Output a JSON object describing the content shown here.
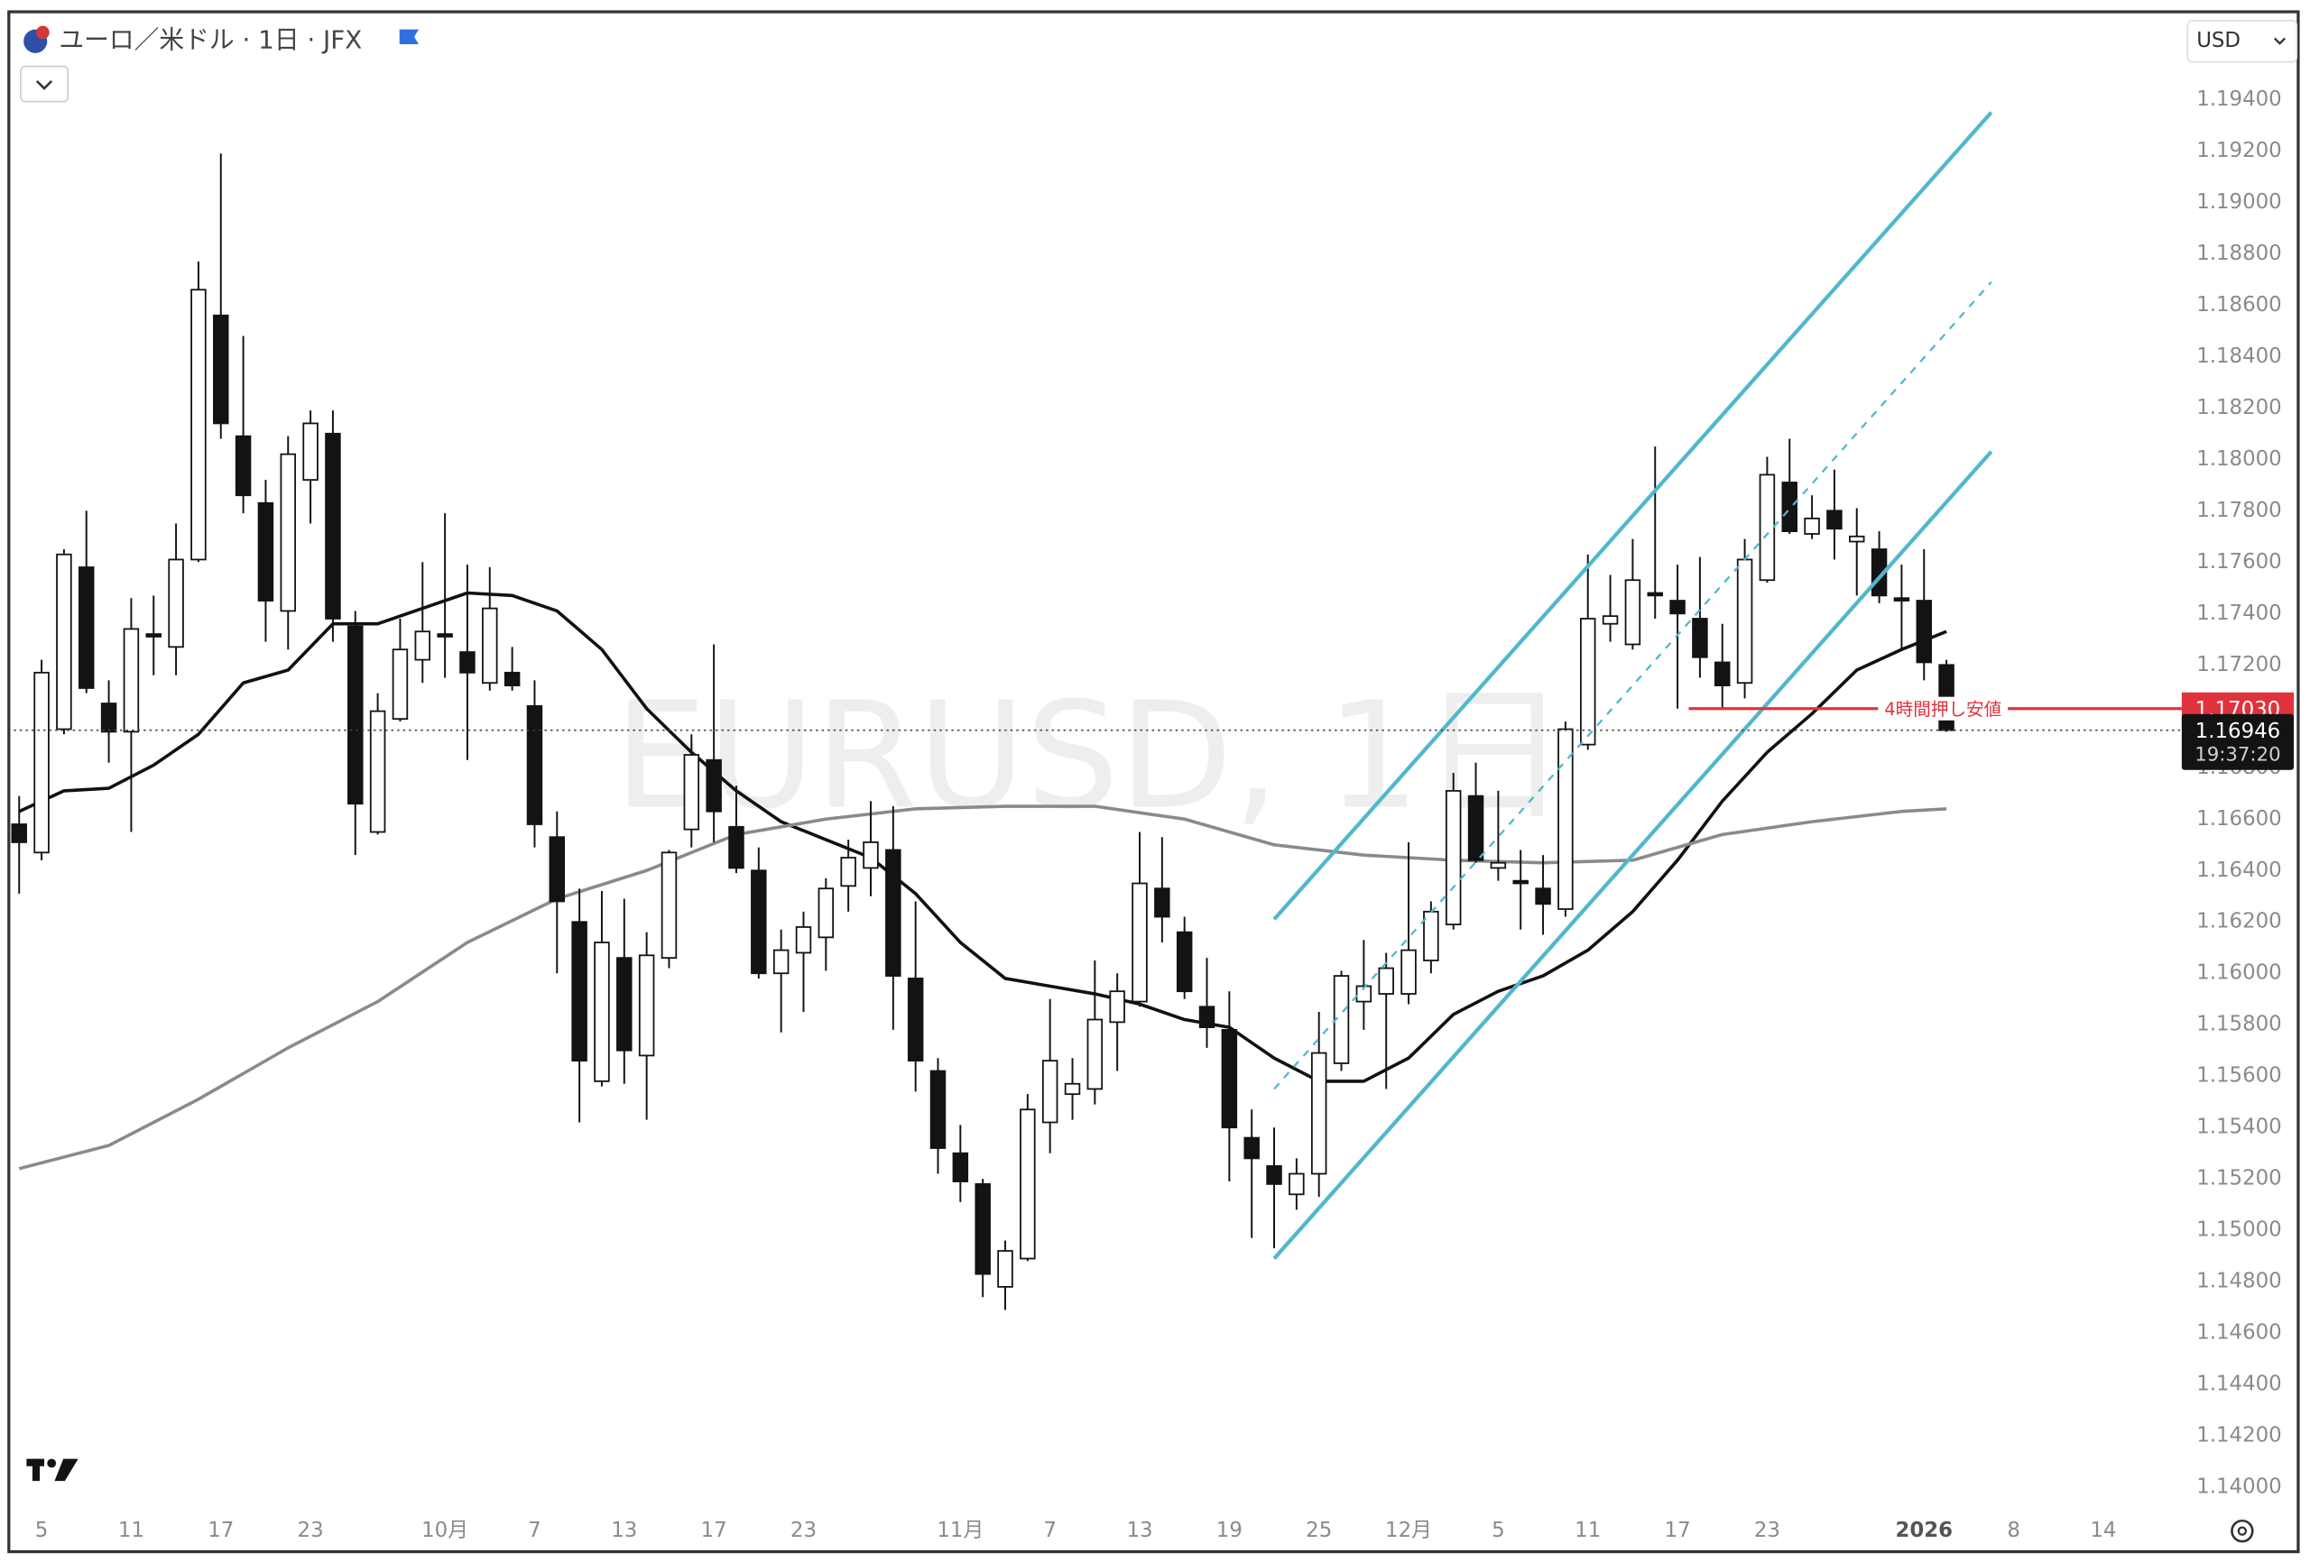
{
  "chart_data": {
    "type": "candlestick",
    "title": "ユーロ／米ドル · 1日 · JFX",
    "watermark": "EURUSD, 1日",
    "currency": "USD",
    "up_color": "#ffffff",
    "down_color": "#131313",
    "wick_color": "#131313",
    "categories": [
      null,
      "5",
      null,
      null,
      null,
      "11",
      null,
      null,
      null,
      "17",
      null,
      null,
      null,
      "23",
      null,
      null,
      null,
      null,
      null,
      "10月",
      null,
      null,
      null,
      "7",
      null,
      null,
      null,
      "13",
      null,
      null,
      null,
      "17",
      null,
      null,
      null,
      "23",
      null,
      null,
      null,
      null,
      null,
      null,
      "11月",
      null,
      null,
      null,
      "7",
      null,
      null,
      null,
      "13",
      null,
      null,
      null,
      "19",
      null,
      null,
      null,
      "25",
      null,
      null,
      null,
      "12月",
      null,
      null,
      null,
      "5",
      null,
      null,
      null,
      "11",
      null,
      null,
      null,
      "17",
      null,
      null,
      null,
      "23",
      null,
      null,
      null,
      null,
      null,
      null,
      "2026",
      null,
      null,
      null,
      "8",
      null,
      null,
      null,
      "14",
      null,
      null,
      null
    ],
    "open": [
      1.1658,
      1.1647,
      1.1695,
      1.1758,
      1.1705,
      1.1694,
      1.1732,
      1.1727,
      1.1761,
      1.1856,
      1.1809,
      1.1783,
      1.1741,
      1.1792,
      1.181,
      1.1735,
      1.1655,
      1.1699,
      1.1722,
      1.1732,
      1.1725,
      1.1713,
      1.1717,
      1.1704,
      1.1653,
      1.162,
      1.1558,
      1.1606,
      1.1568,
      1.1606,
      1.1656,
      1.1683,
      1.1657,
      1.164,
      1.16,
      1.1608,
      1.1614,
      1.1634,
      1.1641,
      1.1648,
      1.1598,
      1.1562,
      1.153,
      1.1518,
      1.1478,
      1.1489,
      1.1542,
      1.1553,
      1.1555,
      1.1581,
      1.1589,
      1.1633,
      1.1616,
      1.1587,
      1.1578,
      1.1536,
      1.1525,
      1.1514,
      1.1522,
      1.1565,
      1.1589,
      1.1592,
      1.1592,
      1.1605,
      1.1619,
      1.1669,
      1.1641,
      1.1636,
      1.1633,
      1.1625,
      1.1689,
      1.1736,
      1.1728,
      1.1748,
      1.1745,
      1.1738,
      1.1721,
      1.1713,
      1.1753,
      1.1791,
      1.1771,
      1.178,
      1.1768,
      1.1765,
      1.1746,
      1.1745,
      1.172,
      null,
      null,
      null,
      null,
      null,
      null,
      null,
      null,
      null,
      null
    ],
    "high": [
      1.1669,
      1.1722,
      1.1765,
      1.178,
      1.1714,
      1.1746,
      1.1747,
      1.1775,
      1.1877,
      1.1919,
      1.1848,
      1.1792,
      1.1809,
      1.1819,
      1.1819,
      1.1741,
      1.1709,
      1.1738,
      1.176,
      1.1779,
      1.1759,
      1.1758,
      1.1727,
      1.1714,
      1.1663,
      1.1633,
      1.1632,
      1.1629,
      1.1616,
      1.1648,
      1.1693,
      1.1728,
      1.1673,
      1.1649,
      1.1617,
      1.1624,
      1.1637,
      1.1652,
      1.1667,
      1.1665,
      1.1628,
      1.1567,
      1.1541,
      1.152,
      1.1496,
      1.1553,
      1.159,
      1.1567,
      1.1605,
      1.16,
      1.1655,
      1.1653,
      1.1622,
      1.1606,
      1.1593,
      1.1547,
      1.154,
      1.1528,
      1.1585,
      1.1601,
      1.1613,
      1.1608,
      1.1651,
      1.1628,
      1.1678,
      1.1682,
      1.1671,
      1.1648,
      1.1646,
      1.1698,
      1.1763,
      1.1755,
      1.1769,
      1.1805,
      1.1759,
      1.1762,
      1.1736,
      1.1769,
      1.1801,
      1.1808,
      1.1786,
      1.1796,
      1.1781,
      1.1772,
      1.1759,
      1.1765,
      1.1722,
      null,
      null,
      null,
      null,
      null,
      null,
      null,
      null,
      null,
      null
    ],
    "low": [
      1.1631,
      1.1644,
      1.1693,
      1.1709,
      1.1682,
      1.1655,
      1.1716,
      1.1716,
      1.176,
      1.1808,
      1.1779,
      1.1729,
      1.1726,
      1.1775,
      1.1729,
      1.1646,
      1.1654,
      1.1698,
      1.1713,
      1.1715,
      1.1683,
      1.171,
      1.171,
      1.1649,
      1.16,
      1.1542,
      1.1556,
      1.1557,
      1.1543,
      1.1602,
      1.1649,
      1.1651,
      1.1639,
      1.1598,
      1.1577,
      1.1585,
      1.1601,
      1.1624,
      1.163,
      1.1578,
      1.1554,
      1.1522,
      1.1511,
      1.1474,
      1.1469,
      1.1488,
      1.153,
      1.1543,
      1.1549,
      1.1562,
      1.1587,
      1.1612,
      1.159,
      1.1571,
      1.1519,
      1.1497,
      1.1493,
      1.1508,
      1.1513,
      1.1562,
      1.1578,
      1.1555,
      1.1588,
      1.16,
      1.1617,
      1.1643,
      1.1636,
      1.1617,
      1.1615,
      1.1622,
      1.1687,
      1.1729,
      1.1726,
      1.1738,
      1.1703,
      1.1715,
      1.1703,
      1.1707,
      1.1752,
      1.1771,
      1.1769,
      1.1761,
      1.1747,
      1.1744,
      1.1726,
      1.1714,
      1.1694,
      null,
      null,
      null,
      null,
      null,
      null,
      null,
      null,
      null,
      null
    ],
    "close": [
      1.1651,
      1.1717,
      1.1763,
      1.1711,
      1.1694,
      1.1734,
      1.1731,
      1.1761,
      1.1866,
      1.1814,
      1.1786,
      1.1745,
      1.1802,
      1.1814,
      1.1738,
      1.1666,
      1.1702,
      1.1726,
      1.1733,
      1.1731,
      1.1717,
      1.1742,
      1.1712,
      1.1658,
      1.1628,
      1.1566,
      1.1612,
      1.157,
      1.1607,
      1.1647,
      1.1685,
      1.1663,
      1.1641,
      1.16,
      1.1609,
      1.1618,
      1.1633,
      1.1645,
      1.1651,
      1.1599,
      1.1566,
      1.1532,
      1.1519,
      1.1483,
      1.1492,
      1.1547,
      1.1566,
      1.1557,
      1.1582,
      1.1593,
      1.1635,
      1.1622,
      1.1593,
      1.1579,
      1.154,
      1.1528,
      1.1518,
      1.1522,
      1.1569,
      1.1599,
      1.1595,
      1.1602,
      1.1609,
      1.1624,
      1.1671,
      1.1644,
      1.1643,
      1.1635,
      1.1627,
      1.1695,
      1.1738,
      1.1739,
      1.1753,
      1.1747,
      1.174,
      1.1723,
      1.1712,
      1.1761,
      1.1794,
      1.1772,
      1.1777,
      1.1773,
      1.177,
      1.1747,
      1.1745,
      1.1721,
      1.16946,
      null,
      null,
      null,
      null,
      null,
      null,
      null,
      null,
      null,
      null
    ],
    "series": [
      {
        "color": "#111111",
        "x": [
          0,
          2,
          4,
          6,
          8,
          10,
          12,
          14,
          16,
          18,
          20,
          22,
          24,
          26,
          28,
          30,
          32,
          34,
          36,
          38,
          40,
          42,
          44,
          46,
          48,
          50,
          52,
          54,
          56,
          58,
          60,
          62,
          64,
          66,
          68,
          70,
          72,
          74,
          76,
          78,
          80,
          82,
          84,
          86
        ],
        "values": [
          1.1663,
          1.1671,
          1.1672,
          1.1681,
          1.1693,
          1.1713,
          1.1718,
          1.1736,
          1.1736,
          1.1742,
          1.1748,
          1.1747,
          1.1741,
          1.1726,
          1.1703,
          1.1686,
          1.1671,
          1.1659,
          1.1652,
          1.1645,
          1.1631,
          1.1612,
          1.1598,
          1.1595,
          1.1592,
          1.1588,
          1.1582,
          1.1579,
          1.1567,
          1.1558,
          1.1558,
          1.1567,
          1.1584,
          1.1593,
          1.1599,
          1.1609,
          1.1624,
          1.1644,
          1.1667,
          1.1686,
          1.1701,
          1.1718,
          1.1726,
          1.1733
        ]
      },
      {
        "color": "#8a8a8a",
        "x": [
          0,
          4,
          8,
          12,
          16,
          20,
          24,
          28,
          32,
          36,
          40,
          44,
          48,
          52,
          56,
          60,
          64,
          68,
          72,
          76,
          80,
          84,
          86
        ],
        "values": [
          1.1524,
          1.1533,
          1.1551,
          1.1571,
          1.1589,
          1.1612,
          1.1629,
          1.164,
          1.1654,
          1.166,
          1.1664,
          1.1665,
          1.1665,
          1.166,
          1.165,
          1.1646,
          1.1644,
          1.1643,
          1.1644,
          1.1654,
          1.1659,
          1.1663,
          1.1664
        ]
      }
    ],
    "trendlines": [
      {
        "color": "#4fb8cc",
        "dashed": false,
        "x": [
          56,
          88
        ],
        "values": [
          1.1621,
          1.1935
        ]
      },
      {
        "color": "#4fb8cc",
        "dashed": true,
        "x": [
          56,
          88
        ],
        "values": [
          1.1555,
          1.1869
        ]
      },
      {
        "color": "#4fb8cc",
        "dashed": false,
        "x": [
          56,
          88
        ],
        "values": [
          1.1489,
          1.1803
        ]
      }
    ],
    "hline": {
      "value": 1.1703,
      "label": "1.17030",
      "text": "4時間押し安値",
      "color": "#e0323d",
      "x_start": 75
    },
    "last_price": 1.16946,
    "countdown": "19:37:20",
    "ylim": [
      1.1391,
      1.1973
    ],
    "yticks": [
      {
        "value": 1.14,
        "label": "1.14000"
      },
      {
        "value": 1.142,
        "label": "1.14200"
      },
      {
        "value": 1.144,
        "label": "1.14400"
      },
      {
        "value": 1.146,
        "label": "1.14600"
      },
      {
        "value": 1.148,
        "label": "1.14800"
      },
      {
        "value": 1.15,
        "label": "1.15000"
      },
      {
        "value": 1.152,
        "label": "1.15200"
      },
      {
        "value": 1.154,
        "label": "1.15400"
      },
      {
        "value": 1.156,
        "label": "1.15600"
      },
      {
        "value": 1.158,
        "label": "1.15800"
      },
      {
        "value": 1.16,
        "label": "1.16000"
      },
      {
        "value": 1.162,
        "label": "1.16200"
      },
      {
        "value": 1.164,
        "label": "1.16400"
      },
      {
        "value": 1.166,
        "label": "1.16600"
      },
      {
        "value": 1.168,
        "label": "1.16800"
      },
      {
        "value": 1.17,
        "label": "1.17000"
      },
      {
        "value": 1.172,
        "label": "1.17200"
      },
      {
        "value": 1.174,
        "label": "1.17400"
      },
      {
        "value": 1.176,
        "label": "1.17600"
      },
      {
        "value": 1.178,
        "label": "1.17800"
      },
      {
        "value": 1.18,
        "label": "1.18000"
      },
      {
        "value": 1.182,
        "label": "1.18200"
      },
      {
        "value": 1.184,
        "label": "1.18400"
      },
      {
        "value": 1.186,
        "label": "1.18600"
      },
      {
        "value": 1.188,
        "label": "1.18800"
      },
      {
        "value": 1.19,
        "label": "1.19000"
      },
      {
        "value": 1.192,
        "label": "1.19200"
      },
      {
        "value": 1.194,
        "label": "1.19400"
      }
    ]
  }
}
